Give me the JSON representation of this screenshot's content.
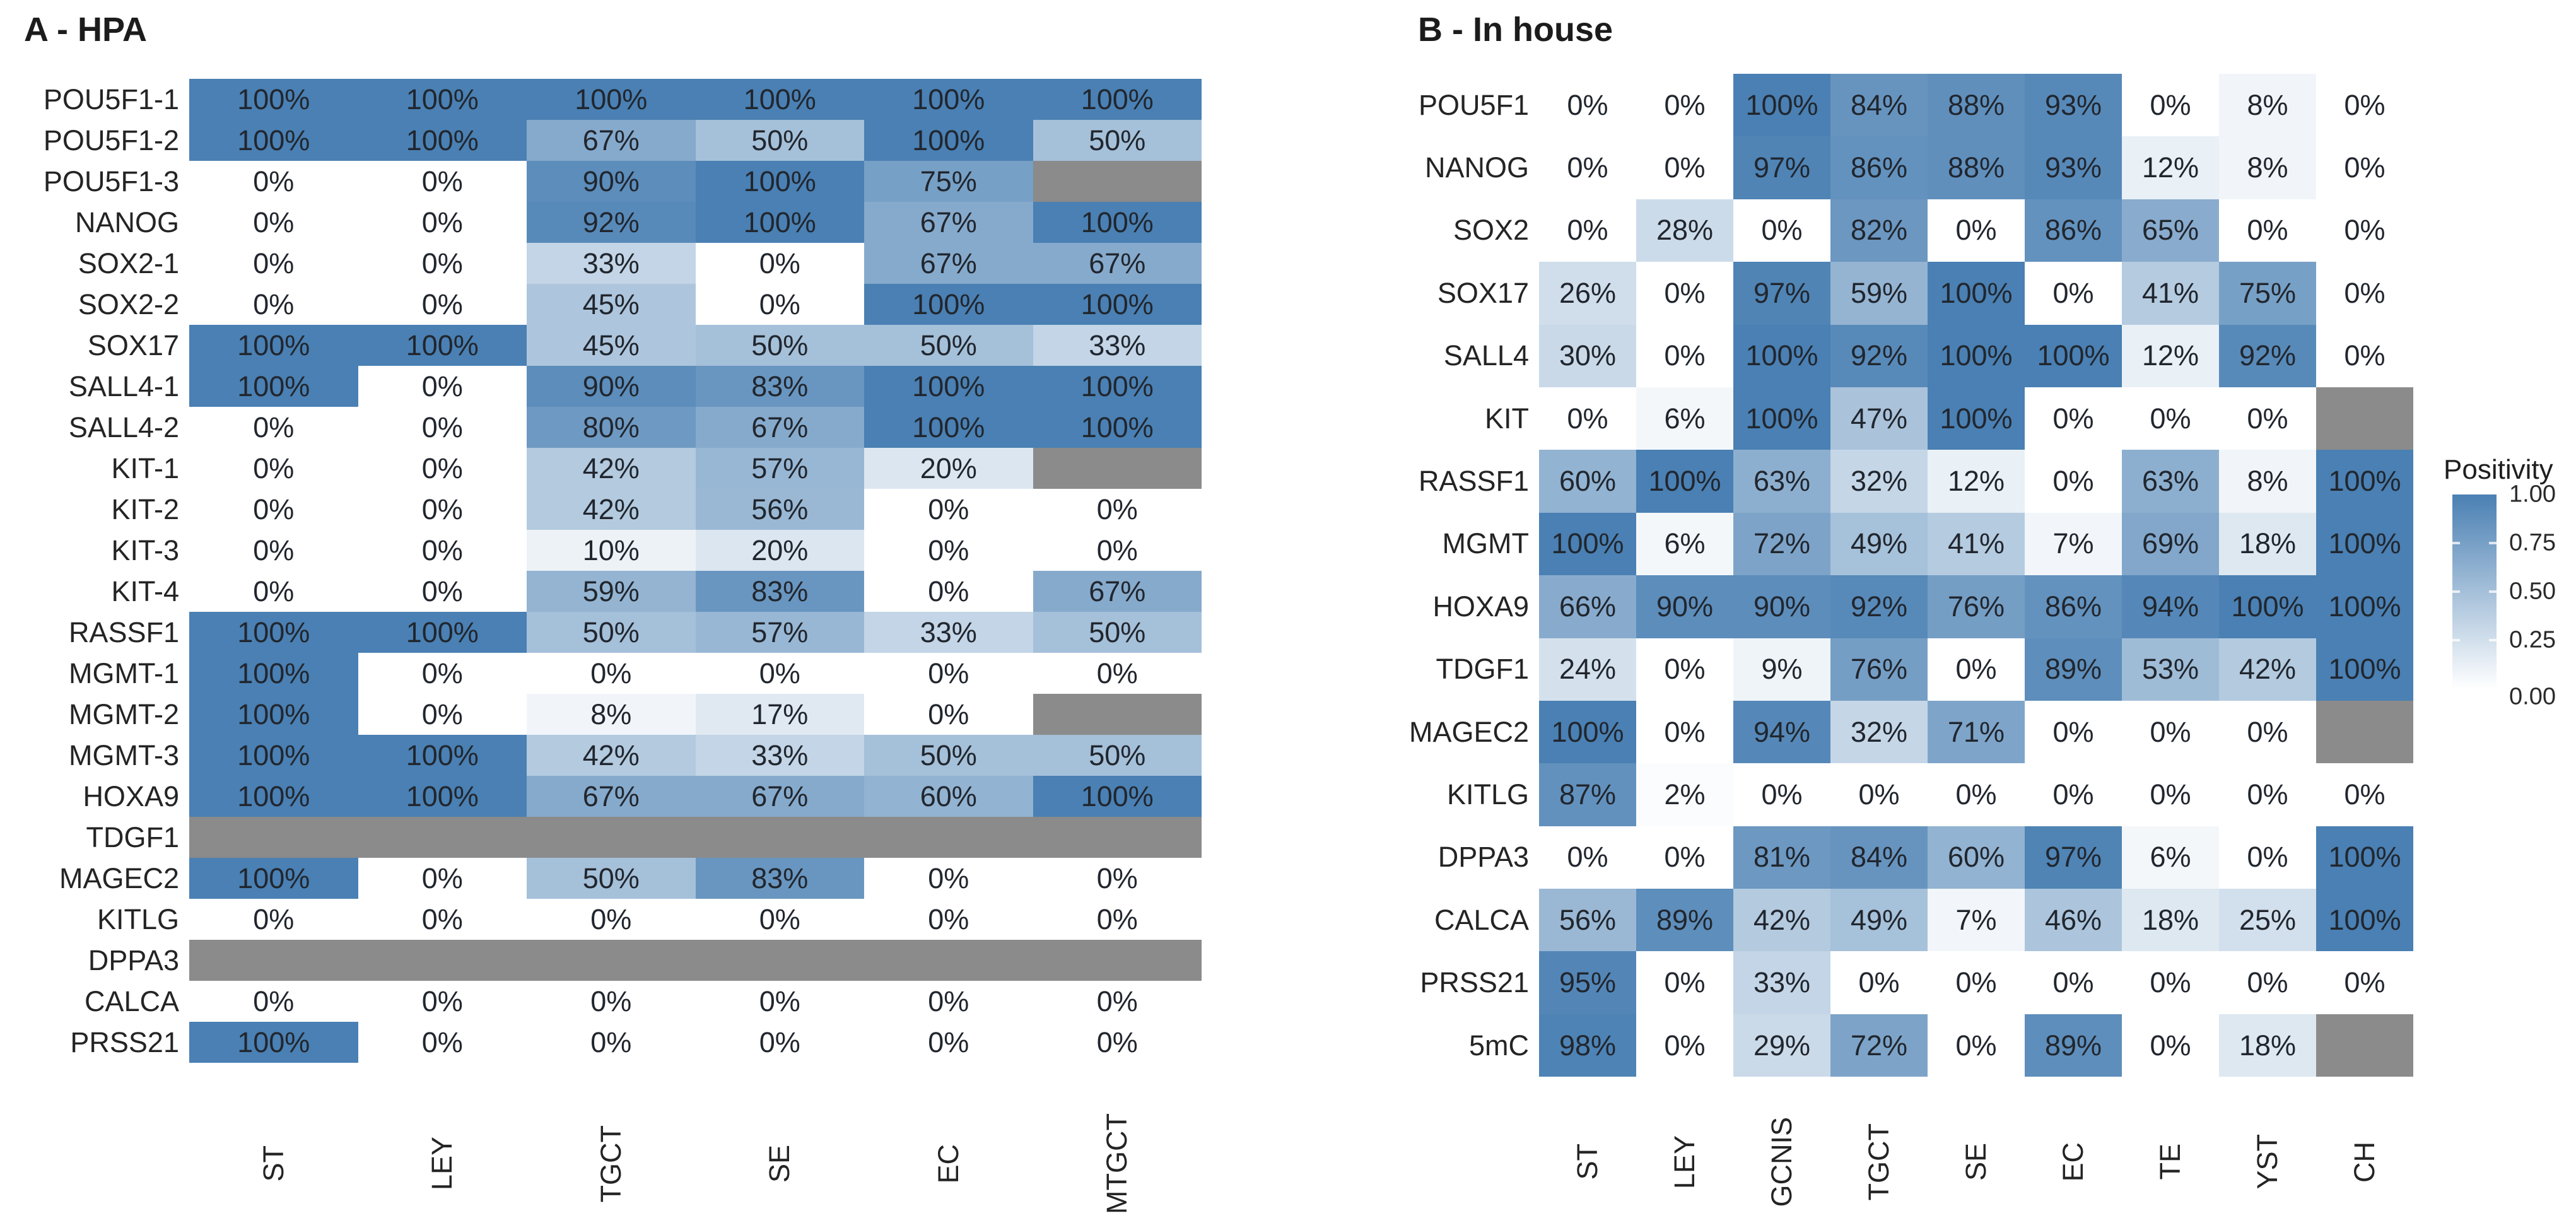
{
  "value_suffix": "%",
  "chart_data": [
    {
      "type": "heatmap",
      "panel": "A",
      "title": "A - HPA",
      "columns": [
        "ST",
        "LEY",
        "TGCT",
        "SE",
        "EC",
        "MTGCT"
      ],
      "rows": [
        "POU5F1-1",
        "POU5F1-2",
        "POU5F1-3",
        "NANOG",
        "SOX2-1",
        "SOX2-2",
        "SOX17",
        "SALL4-1",
        "SALL4-2",
        "KIT-1",
        "KIT-2",
        "KIT-3",
        "KIT-4",
        "RASSF1",
        "MGMT-1",
        "MGMT-2",
        "MGMT-3",
        "HOXA9",
        "TDGF1",
        "MAGEC2",
        "KITLG",
        "DPPA3",
        "CALCA",
        "PRSS21"
      ],
      "values": [
        [
          100,
          100,
          100,
          100,
          100,
          100
        ],
        [
          100,
          100,
          67,
          50,
          100,
          50
        ],
        [
          0,
          0,
          90,
          100,
          75,
          null
        ],
        [
          0,
          0,
          92,
          100,
          67,
          100
        ],
        [
          0,
          0,
          33,
          0,
          67,
          67
        ],
        [
          0,
          0,
          45,
          0,
          100,
          100
        ],
        [
          100,
          100,
          45,
          50,
          50,
          33
        ],
        [
          100,
          0,
          90,
          83,
          100,
          100
        ],
        [
          0,
          0,
          80,
          67,
          100,
          100
        ],
        [
          0,
          0,
          42,
          57,
          20,
          null
        ],
        [
          0,
          0,
          42,
          56,
          0,
          0
        ],
        [
          0,
          0,
          10,
          20,
          0,
          0
        ],
        [
          0,
          0,
          59,
          83,
          0,
          67
        ],
        [
          100,
          100,
          50,
          57,
          33,
          50
        ],
        [
          100,
          0,
          0,
          0,
          0,
          0
        ],
        [
          100,
          0,
          8,
          17,
          0,
          null
        ],
        [
          100,
          100,
          42,
          33,
          50,
          50
        ],
        [
          100,
          100,
          67,
          67,
          60,
          100
        ],
        [
          null,
          null,
          null,
          null,
          null,
          null
        ],
        [
          100,
          0,
          50,
          83,
          0,
          0
        ],
        [
          0,
          0,
          0,
          0,
          0,
          0
        ],
        [
          null,
          null,
          null,
          null,
          null,
          null
        ],
        [
          0,
          0,
          0,
          0,
          0,
          0
        ],
        [
          100,
          0,
          0,
          0,
          0,
          0
        ]
      ]
    },
    {
      "type": "heatmap",
      "panel": "B",
      "title": "B - In house",
      "columns": [
        "ST",
        "LEY",
        "GCNIS",
        "TGCT",
        "SE",
        "EC",
        "TE",
        "YST",
        "CH"
      ],
      "rows": [
        "POU5F1",
        "NANOG",
        "SOX2",
        "SOX17",
        "SALL4",
        "KIT",
        "RASSF1",
        "MGMT",
        "HOXA9",
        "TDGF1",
        "MAGEC2",
        "KITLG",
        "DPPA3",
        "CALCA",
        "PRSS21",
        "5mC"
      ],
      "values": [
        [
          0,
          0,
          100,
          84,
          88,
          93,
          0,
          8,
          0
        ],
        [
          0,
          0,
          97,
          86,
          88,
          93,
          12,
          8,
          0
        ],
        [
          0,
          28,
          0,
          82,
          0,
          86,
          65,
          0,
          0
        ],
        [
          26,
          0,
          97,
          59,
          100,
          0,
          41,
          75,
          0
        ],
        [
          30,
          0,
          100,
          92,
          100,
          100,
          12,
          92,
          0
        ],
        [
          0,
          6,
          100,
          47,
          100,
          0,
          0,
          0,
          null
        ],
        [
          60,
          100,
          63,
          32,
          12,
          0,
          63,
          8,
          100
        ],
        [
          100,
          6,
          72,
          49,
          41,
          7,
          69,
          18,
          100
        ],
        [
          66,
          90,
          90,
          92,
          76,
          86,
          94,
          100,
          100
        ],
        [
          24,
          0,
          9,
          76,
          0,
          89,
          53,
          42,
          100
        ],
        [
          100,
          0,
          94,
          32,
          71,
          0,
          0,
          0,
          null
        ],
        [
          87,
          2,
          0,
          0,
          0,
          0,
          0,
          0,
          0
        ],
        [
          0,
          0,
          81,
          84,
          60,
          97,
          6,
          0,
          100
        ],
        [
          56,
          89,
          42,
          49,
          7,
          46,
          18,
          25,
          100
        ],
        [
          95,
          0,
          33,
          0,
          0,
          0,
          0,
          0,
          0
        ],
        [
          98,
          0,
          29,
          72,
          0,
          89,
          0,
          18,
          null
        ]
      ]
    }
  ],
  "legend": {
    "title": "Positivity",
    "ticks": [
      "1.00",
      "0.75",
      "0.50",
      "0.25",
      "0.00"
    ],
    "colors": {
      "high": "#4A80B3",
      "low": "#FFFFFF",
      "na": "#8B8B8B"
    }
  }
}
